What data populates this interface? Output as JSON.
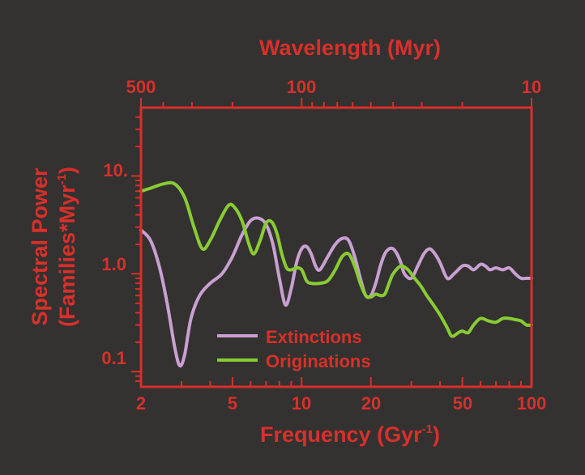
{
  "chart_data": {
    "type": "line",
    "top_axis_label": "Wavelength (Myr)",
    "top_axis_ticks": [
      "500",
      "100",
      "10"
    ],
    "xlabel": "Frequency (Gyr",
    "xlabel_sup": "-1",
    "xlabel_end": ")",
    "ylabel_line1": "Spectral Power",
    "ylabel_line2": "(Families*Myr",
    "ylabel_line2_sup": "-1",
    "ylabel_line2_end": ")",
    "x_ticks": [
      "2",
      "5",
      "10",
      "20",
      "50",
      "100"
    ],
    "y_ticks": [
      "0.1",
      "1.0",
      "10."
    ],
    "x_scale": "log",
    "y_scale": "log",
    "xlim": [
      2,
      100
    ],
    "ylim": [
      0.07,
      50
    ],
    "legend_position": "bottom-center",
    "colors": {
      "background": "#343131",
      "axes": "#d8302a",
      "extinctions": "#c8a0d2",
      "originations": "#88cc33"
    },
    "series": [
      {
        "name": "Extinctions",
        "color": "#c8a0d2",
        "x": [
          2,
          2.2,
          2.4,
          2.6,
          2.8,
          2.95,
          3.1,
          3.3,
          3.6,
          4.0,
          4.5,
          5.0,
          5.5,
          6.0,
          6.5,
          7.0,
          7.5,
          8.0,
          8.5,
          9.0,
          9.5,
          10,
          10.5,
          11,
          11.5,
          12,
          13,
          14,
          15,
          16,
          17,
          18,
          19,
          20,
          21,
          22,
          23,
          24,
          25,
          26,
          27,
          28,
          30,
          32,
          34,
          36,
          38,
          40,
          43,
          46,
          50,
          53,
          56,
          60,
          63,
          66,
          70,
          75,
          80,
          85,
          90,
          95,
          100
        ],
        "y": [
          2.8,
          2.2,
          1.2,
          0.5,
          0.18,
          0.115,
          0.15,
          0.35,
          0.6,
          0.8,
          1.0,
          1.5,
          2.5,
          3.5,
          3.7,
          3.2,
          2.0,
          0.9,
          0.48,
          0.7,
          1.3,
          1.8,
          1.9,
          1.6,
          1.2,
          1.1,
          1.5,
          2.0,
          2.3,
          2.2,
          1.5,
          0.9,
          0.6,
          0.6,
          0.8,
          1.2,
          1.6,
          1.8,
          1.8,
          1.6,
          1.3,
          1.0,
          0.9,
          1.2,
          1.6,
          1.8,
          1.6,
          1.3,
          0.9,
          1.0,
          1.2,
          1.2,
          1.1,
          1.25,
          1.2,
          1.1,
          1.15,
          1.1,
          1.15,
          1.0,
          0.9,
          0.9,
          0.9
        ]
      },
      {
        "name": "Originations",
        "color": "#88cc33",
        "x": [
          2,
          2.2,
          2.5,
          2.8,
          3.1,
          3.4,
          3.7,
          4.0,
          4.4,
          4.8,
          5.1,
          5.5,
          5.9,
          6.2,
          6.6,
          7.0,
          7.4,
          7.8,
          8.2,
          8.6,
          9.0,
          9.5,
          10,
          10.5,
          11,
          12,
          13,
          14,
          15,
          16,
          17,
          18,
          19,
          20,
          21,
          22,
          23,
          24,
          25,
          27,
          29,
          31,
          33,
          35,
          37,
          40,
          43,
          45,
          48,
          50,
          53,
          56,
          60,
          65,
          70,
          75,
          80,
          85,
          90,
          95,
          100
        ],
        "y": [
          7.0,
          7.5,
          8.3,
          8.3,
          6.0,
          3.0,
          1.8,
          2.2,
          3.5,
          5.0,
          4.8,
          3.5,
          2.0,
          1.6,
          2.2,
          3.3,
          3.4,
          2.6,
          1.6,
          1.15,
          1.1,
          1.15,
          1.1,
          0.85,
          0.8,
          0.8,
          0.85,
          1.1,
          1.5,
          1.6,
          1.2,
          0.8,
          0.6,
          0.58,
          0.62,
          0.6,
          0.62,
          0.8,
          1.0,
          1.2,
          1.1,
          0.9,
          0.75,
          0.6,
          0.5,
          0.38,
          0.28,
          0.23,
          0.25,
          0.26,
          0.25,
          0.3,
          0.35,
          0.33,
          0.32,
          0.35,
          0.35,
          0.34,
          0.33,
          0.3,
          0.3
        ]
      }
    ]
  }
}
